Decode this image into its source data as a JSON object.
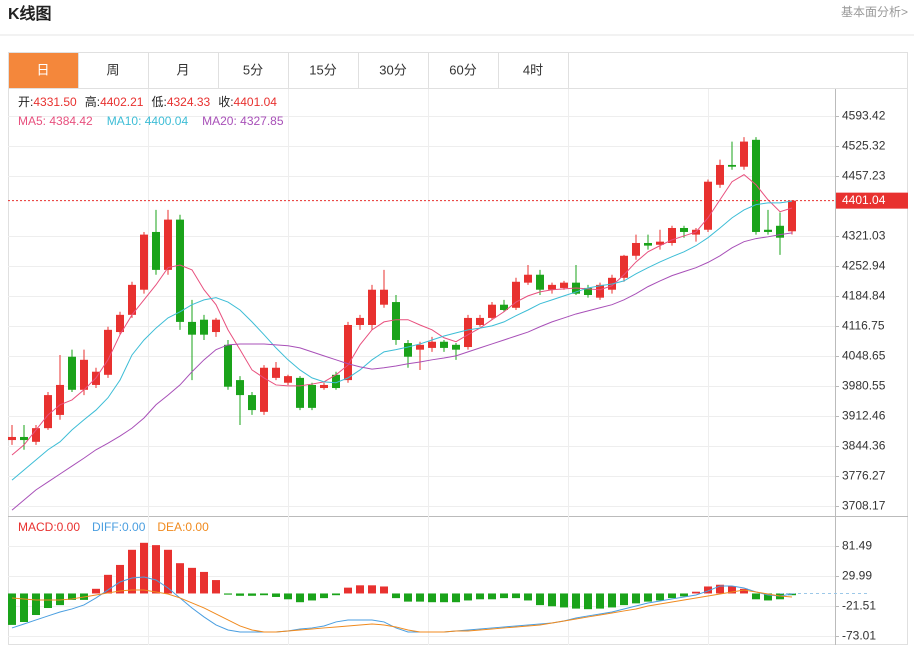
{
  "header": {
    "title": "K线图",
    "link": "基本面分析>"
  },
  "tabs": [
    "日",
    "周",
    "月",
    "5分",
    "15分",
    "30分",
    "60分",
    "4时"
  ],
  "active_tab": 0,
  "chart_data": [
    {
      "type": "candlestick",
      "info": [
        {
          "label": "开:",
          "value": "4331.50"
        },
        {
          "label": "高:",
          "value": "4402.21"
        },
        {
          "label": "低:",
          "value": "4324.33"
        },
        {
          "label": "收:",
          "value": "4401.04"
        }
      ],
      "up_color": "#e8312f",
      "down_color": "#1aa31a",
      "ylim": [
        3688,
        4652
      ],
      "yticks": [
        4593.42,
        4525.32,
        4457.23,
        4321.03,
        4252.94,
        4184.84,
        4116.75,
        4048.65,
        3980.55,
        3912.46,
        3844.36,
        3776.27,
        3708.17
      ],
      "grid": true,
      "last_price": 4401.04,
      "open": [
        3858,
        3865,
        3854,
        3885,
        3915,
        4047,
        3972,
        3983,
        4006,
        4103,
        4142,
        4199,
        4330,
        4244,
        4358,
        4126,
        4131,
        4103,
        4074,
        3994,
        3960,
        3922,
        3999,
        3988,
        3999,
        3983,
        3976,
        4006,
        3994,
        4119,
        4119,
        4165,
        4171,
        4078,
        4063,
        4067,
        4081,
        4074,
        4069,
        4119,
        4135,
        4165,
        4158,
        4215,
        4233,
        4199,
        4203,
        4215,
        4203,
        4181,
        4199,
        4226,
        4276,
        4305,
        4301,
        4305,
        4339,
        4324,
        4335,
        4437,
        4482,
        4478,
        4539,
        4335,
        4344,
        4331.5
      ],
      "high": [
        3892,
        3892,
        3892,
        3967,
        4051,
        4063,
        4063,
        4022,
        4115,
        4149,
        4217,
        4330,
        4380,
        4380,
        4369,
        4176,
        4142,
        4135,
        4085,
        4003,
        3967,
        4028,
        4035,
        4006,
        4003,
        3988,
        3988,
        4013,
        4126,
        4142,
        4210,
        4244,
        4187,
        4085,
        4081,
        4092,
        4085,
        4078,
        4142,
        4142,
        4171,
        4176,
        4226,
        4255,
        4244,
        4215,
        4219,
        4255,
        4210,
        4215,
        4233,
        4278,
        4324,
        4324,
        4335,
        4344,
        4344,
        4339,
        4449,
        4494,
        4535,
        4545,
        4545,
        4380,
        4374,
        4402.21
      ],
      "low": [
        3847,
        3836,
        3847,
        3881,
        3904,
        3967,
        3960,
        3976,
        3999,
        4097,
        4135,
        4190,
        4233,
        4233,
        4108,
        3994,
        4085,
        4092,
        3972,
        3892,
        3915,
        3915,
        3994,
        3983,
        3926,
        3926,
        3972,
        3972,
        3988,
        4108,
        4108,
        4158,
        4074,
        4022,
        4017,
        4058,
        4058,
        4040,
        4063,
        4115,
        4131,
        4149,
        4153,
        4210,
        4187,
        4190,
        4199,
        4187,
        4181,
        4176,
        4190,
        4217,
        4267,
        4290,
        4290,
        4299,
        4317,
        4308,
        4330,
        4430,
        4471,
        4471,
        4324,
        4324,
        4278,
        4324.33
      ],
      "close": [
        3865,
        3858,
        3885,
        3960,
        3983,
        3972,
        4040,
        4013,
        4108,
        4142,
        4210,
        4324,
        4244,
        4358,
        4126,
        4097,
        4097,
        4131,
        3979,
        3960,
        3926,
        4022,
        4022,
        4003,
        3931,
        3931,
        3983,
        3976,
        4119,
        4135,
        4199,
        4199,
        4085,
        4047,
        4074,
        4081,
        4067,
        4063,
        4135,
        4135,
        4165,
        4153,
        4217,
        4233,
        4199,
        4210,
        4215,
        4190,
        4187,
        4210,
        4226,
        4276,
        4305,
        4299,
        4308,
        4339,
        4330,
        4335,
        4444,
        4482,
        4478,
        4535,
        4330,
        4330,
        4317,
        4401.04
      ],
      "series": [
        {
          "name": "MA5: 4384.42",
          "color": "#e8507e",
          "values": [
            3824,
            3847,
            3881,
            3915,
            3938,
            3949,
            3972,
            3999,
            4040,
            4097,
            4142,
            4176,
            4210,
            4249,
            4255,
            4244,
            4199,
            4165,
            4108,
            4063,
            4017,
            3999,
            3983,
            3981,
            3981,
            3985,
            3990,
            4006,
            4028,
            4074,
            4108,
            4126,
            4131,
            4131,
            4119,
            4108,
            4090,
            4081,
            4097,
            4112,
            4131,
            4149,
            4171,
            4185,
            4194,
            4199,
            4201,
            4203,
            4201,
            4199,
            4208,
            4233,
            4262,
            4285,
            4299,
            4312,
            4321,
            4330,
            4362,
            4403,
            4444,
            4460,
            4437,
            4403,
            4376,
            4384.42
          ]
        },
        {
          "name": "MA10: 4400.04",
          "color": "#3dbdd6",
          "values": [
            3767,
            3790,
            3813,
            3836,
            3854,
            3881,
            3904,
            3926,
            3954,
            3994,
            4051,
            4085,
            4112,
            4135,
            4149,
            4165,
            4176,
            4181,
            4171,
            4153,
            4126,
            4097,
            4067,
            4040,
            4017,
            3999,
            3990,
            3988,
            3999,
            4017,
            4040,
            4058,
            4063,
            4069,
            4076,
            4085,
            4094,
            4101,
            4108,
            4112,
            4117,
            4126,
            4140,
            4153,
            4167,
            4176,
            4185,
            4194,
            4203,
            4208,
            4212,
            4219,
            4235,
            4249,
            4262,
            4274,
            4285,
            4299,
            4317,
            4339,
            4362,
            4380,
            4392,
            4396,
            4396,
            4400.04
          ]
        },
        {
          "name": "MA20: 4327.85",
          "color": "#a850b8",
          "values": [
            3699,
            3722,
            3745,
            3763,
            3781,
            3799,
            3817,
            3836,
            3851,
            3867,
            3885,
            3908,
            3938,
            3960,
            3983,
            4013,
            4040,
            4063,
            4074,
            4076,
            4076,
            4076,
            4074,
            4072,
            4067,
            4058,
            4049,
            4040,
            4031,
            4024,
            4019,
            4022,
            4026,
            4031,
            4035,
            4040,
            4044,
            4049,
            4058,
            4067,
            4076,
            4085,
            4094,
            4103,
            4115,
            4126,
            4135,
            4144,
            4151,
            4158,
            4165,
            4176,
            4190,
            4206,
            4219,
            4231,
            4240,
            4249,
            4261,
            4276,
            4294,
            4308,
            4315,
            4319,
            4324,
            4327.85
          ]
        }
      ]
    },
    {
      "type": "macd",
      "ylim": [
        -88.5,
        129.6
      ],
      "yticks": [
        81.49,
        29.99,
        -21.51,
        -73.01
      ],
      "up_color": "#e8312f",
      "down_color": "#1aa31a",
      "histogram": {
        "name": "MACD:0.00",
        "color": "#e8312f",
        "values": [
          -54,
          -49,
          -37,
          -25,
          -20,
          -11,
          -11,
          8,
          32,
          49,
          75,
          87,
          83,
          75,
          52,
          44,
          37,
          23,
          -2,
          -4,
          -4,
          -3,
          -6,
          -10,
          -15,
          -12,
          -8,
          -3,
          10,
          14,
          14,
          12,
          -8,
          -14,
          -14,
          -15,
          -15,
          -15,
          -12,
          -10,
          -10,
          -8,
          -8,
          -12,
          -20,
          -22,
          -24,
          -26,
          -27,
          -26,
          -24,
          -20,
          -17,
          -14,
          -12,
          -8,
          -5,
          3,
          12,
          15,
          12,
          8,
          -10,
          -12,
          -10,
          -3
        ]
      },
      "series": [
        {
          "name": "DIFF:0.00",
          "color": "#4a9ee0",
          "values": [
            -59.2,
            -52.4,
            -45.5,
            -38.6,
            -31.8,
            -26.6,
            -19.7,
            -7.7,
            6,
            19.7,
            26.6,
            28.3,
            23.2,
            9.4,
            -7.7,
            -24.9,
            -40.3,
            -54.1,
            -62.7,
            -66.1,
            -66.1,
            -66.1,
            -66.1,
            -64.4,
            -61,
            -59.2,
            -55.8,
            -48.9,
            -45.5,
            -45.5,
            -45.5,
            -48.9,
            -59.2,
            -66.1,
            -66.1,
            -66.1,
            -66.1,
            -64.4,
            -62.7,
            -61,
            -59.2,
            -57.5,
            -55.8,
            -54.1,
            -52.4,
            -50.7,
            -47.2,
            -42.1,
            -38.6,
            -35.2,
            -31.8,
            -26.6,
            -21.5,
            -16.3,
            -12.9,
            -9.4,
            -6,
            -2.6,
            4.3,
            12.9,
            12.9,
            9.4,
            2.6,
            -2.6,
            -4.3,
            -0.9
          ]
        },
        {
          "name": "DEA:0.00",
          "color": "#f08a1e",
          "values": [
            -7.7,
            -9.4,
            -11.2,
            -11.2,
            -11.2,
            -9.4,
            -6,
            -2.6,
            0.9,
            4.3,
            6,
            6,
            2.6,
            -0.9,
            -7.7,
            -16.3,
            -24.9,
            -35.2,
            -45.5,
            -55.8,
            -62.7,
            -66.1,
            -66.1,
            -64.4,
            -62.7,
            -61,
            -59.2,
            -57.5,
            -55.8,
            -54.1,
            -52.4,
            -54.1,
            -57.5,
            -62.7,
            -66.1,
            -66.1,
            -66.1,
            -64.4,
            -64.4,
            -62.7,
            -61,
            -59.2,
            -57.5,
            -55.8,
            -54.1,
            -50.7,
            -47.2,
            -43.8,
            -40.3,
            -36.9,
            -33.5,
            -30,
            -26.6,
            -21.5,
            -18,
            -14.6,
            -11.2,
            -7.7,
            -4.3,
            -0.9,
            2.6,
            6,
            2.6,
            -0.9,
            -4.3,
            -6
          ]
        }
      ]
    }
  ]
}
